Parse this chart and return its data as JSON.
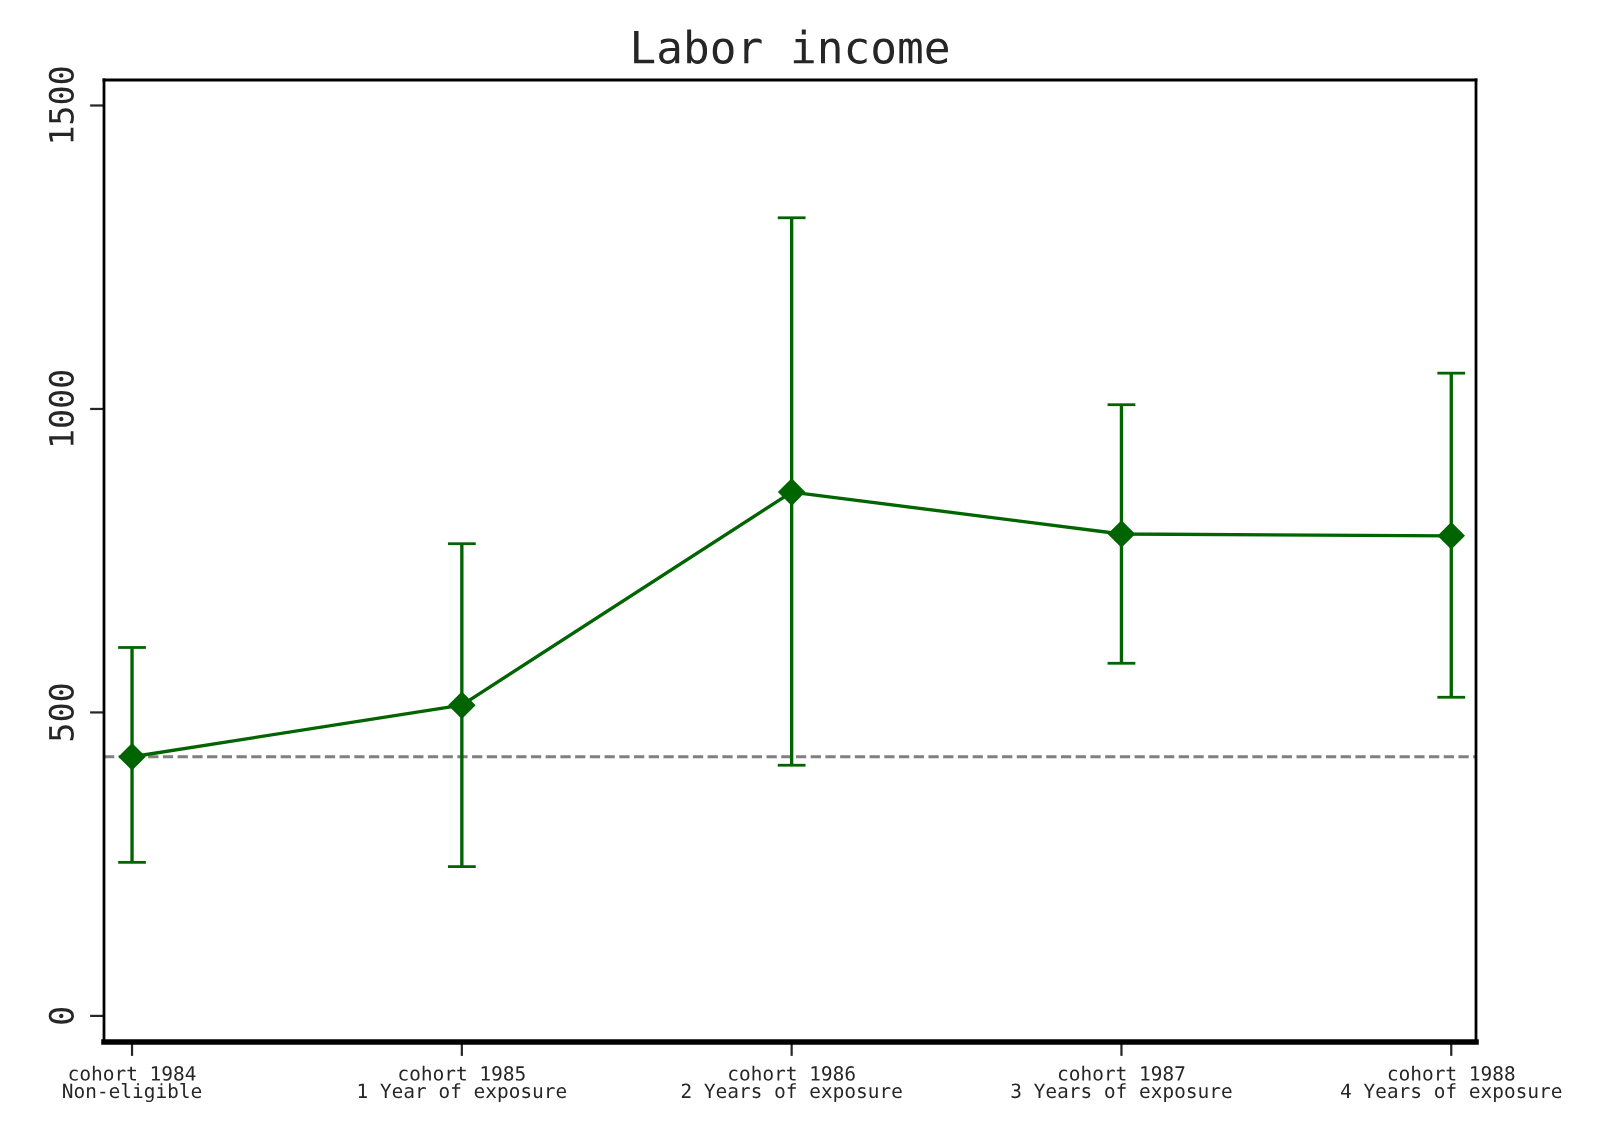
{
  "chart_data": {
    "type": "line",
    "title": "Labor income",
    "categories": [
      "cohort 1984\nNon-eligible",
      "cohort 1985\n1 Year of exposure",
      "cohort 1986\n2 Years of exposure",
      "cohort 1987\n3 Years of exposure",
      "cohort 1988\n4 Years of exposure"
    ],
    "series": [
      {
        "color": "#006400",
        "values": [
          427,
          512,
          863,
          794,
          791
        ],
        "errors": [
          [
            253,
            607
          ],
          [
            246,
            778
          ],
          [
            413,
            1315
          ],
          [
            581,
            1007
          ],
          [
            525,
            1059
          ]
        ]
      }
    ],
    "ylim": [
      -43,
      1542
    ],
    "yticks": [
      0,
      500,
      1000,
      1500
    ],
    "marker": "diamond",
    "line_style": "solid",
    "grid": false,
    "legend": false,
    "ref_lines": [
      {
        "axis": "y",
        "value": 427,
        "color": "#808080",
        "line_style": "dashed"
      }
    ]
  }
}
